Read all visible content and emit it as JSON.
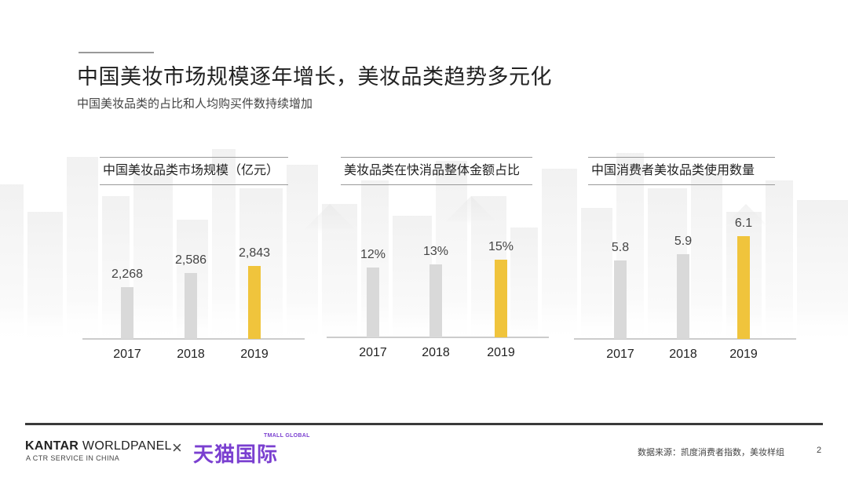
{
  "header": {
    "title": "中国美妆市场规模逐年增长，美妆品类趋势多元化",
    "subtitle": "中国美妆品类的占比和人均购买件数持续增加"
  },
  "colors": {
    "bar_default": "#d9d9d9",
    "bar_highlight": "#f0c43c",
    "axis": "#9a9a9a"
  },
  "chart_data": [
    {
      "type": "bar",
      "title": "中国美妆品类市场规模（亿元）",
      "categories": [
        "2017",
        "2018",
        "2019"
      ],
      "values": [
        2268,
        2586,
        2843
      ],
      "value_labels": [
        "2,268",
        "2,586",
        "2,843"
      ],
      "highlight_index": 2
    },
    {
      "type": "bar",
      "title": "美妆品类在快消品整体金额占比",
      "categories": [
        "2017",
        "2018",
        "2019"
      ],
      "values": [
        12,
        13,
        15
      ],
      "value_labels": [
        "12%",
        "13%",
        "15%"
      ],
      "highlight_index": 2
    },
    {
      "type": "bar",
      "title": "中国消费者美妆品类使用数量",
      "categories": [
        "2017",
        "2018",
        "2019"
      ],
      "values": [
        5.8,
        5.9,
        6.1
      ],
      "value_labels": [
        "5.8",
        "5.9",
        "6.1"
      ],
      "highlight_index": 2
    }
  ],
  "footer": {
    "brand_bold": "KANTAR",
    "brand_rest": "WORLDPANEL",
    "brand_sub": "A CTR SERVICE IN CHINA",
    "times": "×",
    "partner_small": "TMALL GLOBAL",
    "partner_name": "天猫国际",
    "source": "数据来源：凯度消费者指数，美妆样组",
    "page": "2"
  }
}
